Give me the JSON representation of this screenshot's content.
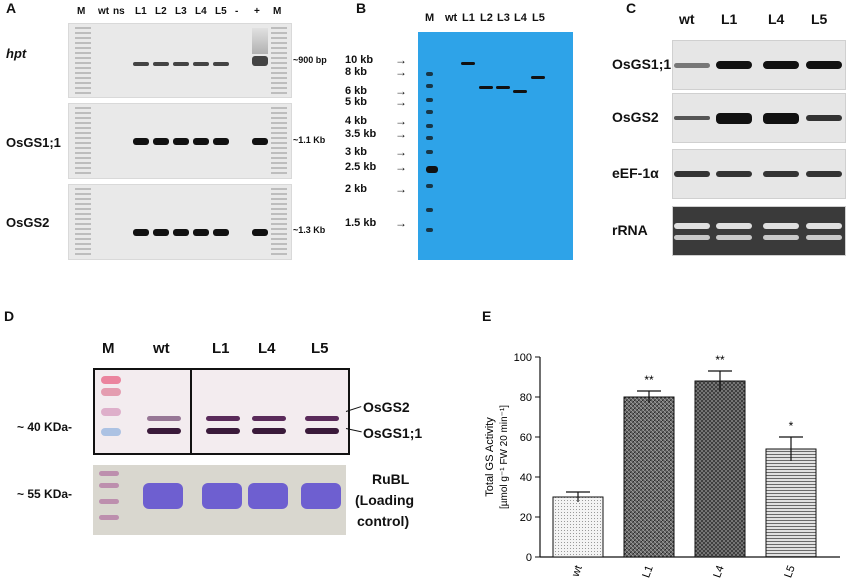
{
  "panelA": {
    "label": "A",
    "lanes": [
      "M",
      "wt",
      "ns",
      "L1",
      "L2",
      "L3",
      "L4",
      "L5",
      "-",
      "+",
      "M"
    ],
    "rows": [
      {
        "name": "hpt",
        "size": "~900 bp"
      },
      {
        "name": "OsGS1;1",
        "size": "~1.1 Kb"
      },
      {
        "name": "OsGS2",
        "size": "~1.3 Kb"
      }
    ]
  },
  "panelB": {
    "label": "B",
    "lanes": [
      "M",
      "wt",
      "L1",
      "L2",
      "L3",
      "L4",
      "L5"
    ],
    "markers": [
      "10 kb",
      "8 kb",
      "6 kb",
      "5 kb",
      "4 kb",
      "3.5 kb",
      "3 kb",
      "2.5 kb",
      "2 kb",
      "1.5 kb"
    ],
    "bg_color": "#2ea3e8"
  },
  "panelC": {
    "label": "C",
    "lanes": [
      "wt",
      "L1",
      "L4",
      "L5"
    ],
    "rows": [
      "OsGS1;1",
      "OsGS2",
      "eEF-1α",
      "rRNA"
    ]
  },
  "panelD": {
    "label": "D",
    "lanes": [
      "M",
      "wt",
      "L1",
      "L4",
      "L5"
    ],
    "size1": "~ 40 KDa-",
    "size2": "~ 55 KDa-",
    "band1": "OsGS2",
    "band2": "OsGS1;1",
    "rubl": "RuBL",
    "loading1": "(Loading",
    "loading2": "control)"
  },
  "panelE": {
    "label": "E",
    "chart_data": {
      "type": "bar",
      "categories": [
        "wt",
        "L1",
        "L4",
        "L5"
      ],
      "values": [
        30,
        80,
        88,
        54
      ],
      "errors": [
        2.5,
        3,
        5,
        6
      ],
      "significance": [
        "",
        "**",
        "**",
        "*"
      ],
      "ylabel_line1": "Total GS Activity",
      "ylabel_line2": "[µmol g⁻¹ FW 20 min⁻¹]",
      "ylim": [
        0,
        100
      ],
      "yticks": [
        "0",
        "20",
        "40",
        "60",
        "80",
        "100"
      ]
    }
  }
}
